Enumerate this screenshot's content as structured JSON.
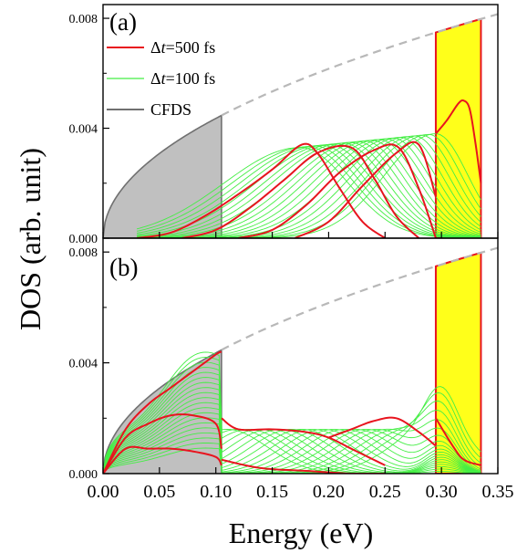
{
  "chart_data": {
    "type": "line",
    "xlabel": "Energy (eV)",
    "ylabel": "DOS (arb. unit)",
    "xlim": [
      0.0,
      0.35
    ],
    "ylim": [
      0.0,
      0.0085
    ],
    "xticks": [
      "0.00",
      "0.05",
      "0.10",
      "0.15",
      "0.20",
      "0.25",
      "0.30",
      "0.35"
    ],
    "yticks": [
      "0.000",
      "0.004",
      "0.008"
    ],
    "legend": {
      "placement": "top-left of panel (a)",
      "entries": [
        {
          "prefix": "Δ",
          "italic": "t",
          "suffix": "=500 fs",
          "color": "#e8141e"
        },
        {
          "prefix": "Δ",
          "italic": "t",
          "suffix": "=100 fs",
          "color": "#44ee44"
        },
        {
          "prefix": "",
          "italic": "",
          "suffix": "CFDS",
          "color": "#707070"
        }
      ]
    },
    "cfds_curve": {
      "formula": "y = 0.01378 * sqrt(x)",
      "style": "dashed gray"
    },
    "filled_regions": [
      {
        "name": "CFDS",
        "x_range": [
          0.0,
          0.105
        ],
        "color": "#c0c0c0"
      },
      {
        "x_range": [
          0.295,
          0.335
        ],
        "color": "#ffff1a"
      }
    ],
    "panels": [
      {
        "label": "(a)",
        "red_curves": [
          {
            "x": [
              0.03,
              0.06,
              0.09,
              0.12,
              0.15,
              0.176,
              0.19,
              0.21,
              0.23,
              0.25
            ],
            "y": [
              0.0,
              0.0002,
              0.0008,
              0.0016,
              0.0025,
              0.0034,
              0.0031,
              0.0018,
              0.0006,
              0.0
            ]
          },
          {
            "x": [
              0.07,
              0.1,
              0.13,
              0.16,
              0.19,
              0.22,
              0.24,
              0.26,
              0.28
            ],
            "y": [
              0.0,
              0.0003,
              0.0011,
              0.0021,
              0.0031,
              0.0033,
              0.0022,
              0.0008,
              0.0
            ]
          },
          {
            "x": [
              0.12,
              0.15,
              0.18,
              0.21,
              0.24,
              0.262,
              0.28,
              0.295
            ],
            "y": [
              0.0,
              0.0003,
              0.0012,
              0.0024,
              0.0032,
              0.0033,
              0.0018,
              0.0
            ]
          },
          {
            "x": [
              0.17,
              0.2,
              0.23,
              0.26,
              0.28,
              0.295
            ],
            "y": [
              0.0,
              0.0006,
              0.0019,
              0.0031,
              0.0034,
              0.0015
            ]
          },
          {
            "x": [
              0.295,
              0.305,
              0.315,
              0.32,
              0.325,
              0.33,
              0.335
            ],
            "y": [
              0.0038,
              0.0043,
              0.0049,
              0.005,
              0.0047,
              0.0035,
              0.002
            ]
          }
        ],
        "green_curves_count": 20
      },
      {
        "label": "(b)",
        "red_curves": [
          {
            "x": [
              0.0,
              0.02,
              0.04,
              0.06,
              0.08,
              0.1,
              0.105
            ],
            "y": [
              0.0,
              0.0016,
              0.0025,
              0.0031,
              0.0037,
              0.0043,
              0.0044
            ]
          },
          {
            "x": [
              0.0,
              0.02,
              0.04,
              0.06,
              0.08,
              0.1,
              0.105
            ],
            "y": [
              0.0,
              0.0013,
              0.0018,
              0.0021,
              0.0021,
              0.0018,
              0.0009
            ]
          },
          {
            "x": [
              0.0,
              0.02,
              0.04,
              0.06,
              0.08,
              0.1,
              0.105
            ],
            "y": [
              0.0,
              0.0009,
              0.0009,
              0.0009,
              0.0008,
              0.0006,
              0.0003
            ]
          },
          {
            "x": [
              0.105,
              0.12,
              0.15,
              0.18,
              0.2,
              0.22,
              0.25
            ],
            "y": [
              0.002,
              0.0016,
              0.0016,
              0.0015,
              0.0013,
              0.0009,
              0.0003
            ]
          },
          {
            "x": [
              0.2,
              0.22,
              0.24,
              0.26,
              0.28,
              0.295
            ],
            "y": [
              0.0013,
              0.0016,
              0.0019,
              0.002,
              0.0015,
              0.001
            ]
          },
          {
            "x": [
              0.105,
              0.14,
              0.18,
              0.22,
              0.25
            ],
            "y": [
              0.0005,
              0.0002,
              0.0001,
              0.0,
              0.0
            ]
          },
          {
            "x": [
              0.295,
              0.31,
              0.32,
              0.335
            ],
            "y": [
              0.002,
              0.001,
              0.0005,
              0.0003
            ]
          }
        ],
        "green_curves_count": 20
      }
    ]
  }
}
